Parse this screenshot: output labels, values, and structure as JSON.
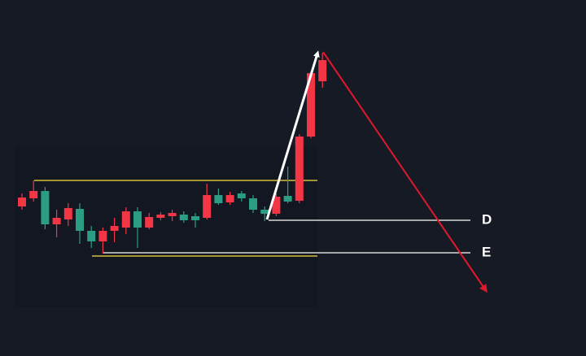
{
  "chart_data": {
    "type": "candlestick",
    "ylim": [
      0,
      438
    ],
    "up_color": "#f23645",
    "down_color": "#2b9d84",
    "open": [
      184,
      194,
      203,
      162,
      168,
      181,
      154,
      141,
      154,
      158,
      178,
      158,
      170,
      172,
      174,
      172,
      170,
      198,
      189,
      200,
      194,
      180,
      175,
      197,
      191,
      270,
      338
    ],
    "high": [
      200,
      216,
      208,
      180,
      188,
      188,
      160,
      158,
      170,
      183,
      183,
      176,
      177,
      180,
      178,
      176,
      212,
      206,
      202,
      203,
      198,
      184,
      200,
      233,
      273,
      350,
      373
    ],
    "low": [
      180,
      190,
      156,
      146,
      160,
      138,
      133,
      126,
      140,
      150,
      133,
      156,
      167,
      166,
      164,
      158,
      168,
      186,
      186,
      190,
      176,
      166,
      172,
      188,
      188,
      268,
      330
    ],
    "close": [
      195,
      203,
      162,
      170,
      182,
      154,
      141,
      154,
      160,
      178,
      158,
      171,
      174,
      176,
      167,
      167,
      198,
      188,
      198,
      194,
      180,
      175,
      196,
      190,
      270,
      348,
      364
    ],
    "zones": [
      216,
      123
    ],
    "zone_color": "#a59433",
    "levels": [
      {
        "label": "D",
        "value": 167
      },
      {
        "label": "E",
        "value": 127
      }
    ],
    "level_color": "#ffffff"
  }
}
